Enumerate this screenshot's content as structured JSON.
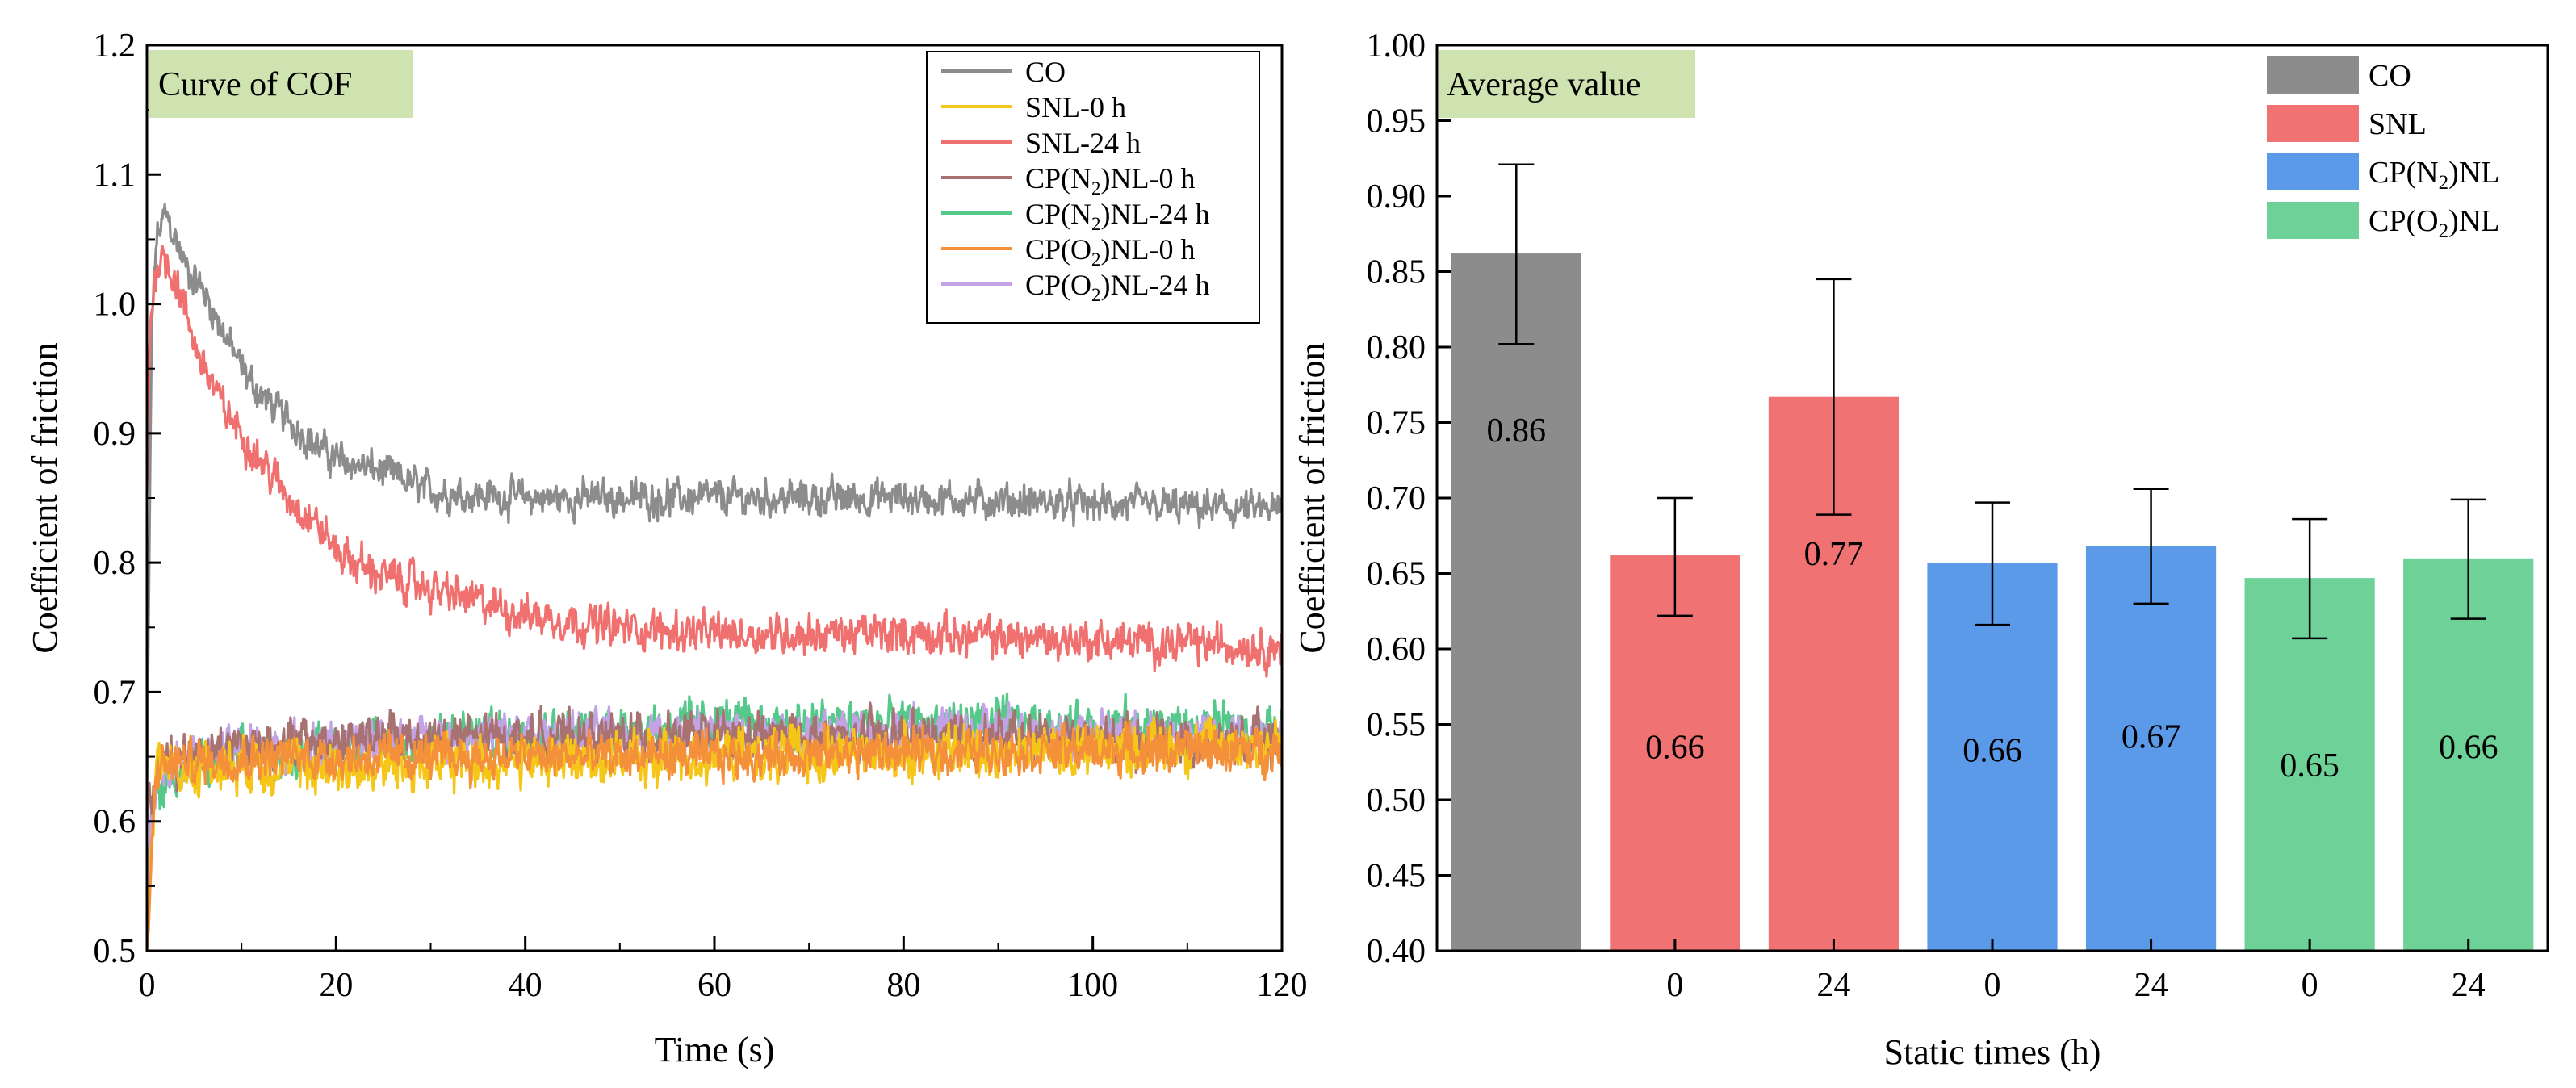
{
  "chart_data": [
    {
      "type": "line",
      "title": "Curve of COF",
      "xlabel": "Time (s)",
      "ylabel": "Coefficient of friction",
      "xlim": [
        0,
        120
      ],
      "ylim": [
        0.5,
        1.2
      ],
      "x_ticks": [
        0,
        20,
        40,
        60,
        80,
        100,
        120
      ],
      "y_ticks": [
        0.5,
        0.6,
        0.7,
        0.8,
        0.9,
        1.0,
        1.1,
        1.2
      ],
      "x_tick_labels": [
        "0",
        "20",
        "40",
        "60",
        "80",
        "100",
        "120"
      ],
      "y_tick_labels": [
        "0.5",
        "0.6",
        "0.7",
        "0.8",
        "0.9",
        "1.0",
        "1.1",
        "1.2"
      ],
      "legend_position": "top-right",
      "series": [
        {
          "name": "CO",
          "legend_base": "CO",
          "legend_sub": "",
          "legend_suffix": "",
          "color": "#8c8c8c",
          "x": [
            0,
            0.5,
            1,
            2,
            4,
            6,
            8,
            10,
            12,
            15,
            18,
            20,
            25,
            30,
            40,
            50,
            60,
            80,
            100,
            120
          ],
          "y": [
            0.62,
            0.98,
            1.05,
            1.07,
            1.03,
            1.01,
            0.98,
            0.95,
            0.93,
            0.91,
            0.89,
            0.88,
            0.87,
            0.855,
            0.85,
            0.85,
            0.85,
            0.85,
            0.845,
            0.84
          ],
          "noise": 0.018
        },
        {
          "name": "SNL-0 h",
          "legend_base": "SNL-0 h",
          "legend_sub": "",
          "legend_suffix": "",
          "color": "#f5c518",
          "x": [
            0,
            1,
            3,
            10,
            20,
            30,
            60,
            90,
            120
          ],
          "y": [
            0.5,
            0.65,
            0.64,
            0.645,
            0.64,
            0.645,
            0.65,
            0.655,
            0.66
          ],
          "noise": 0.026
        },
        {
          "name": "SNL-24 h",
          "legend_base": "SNL-24 h",
          "legend_sub": "",
          "legend_suffix": "",
          "color": "#f07070",
          "x": [
            0,
            0.3,
            0.8,
            1.5,
            3,
            5,
            8,
            12,
            15,
            18,
            20,
            22,
            25,
            30,
            40,
            50,
            60,
            80,
            100,
            120
          ],
          "y": [
            0.85,
            0.98,
            1.02,
            1.04,
            1.02,
            0.97,
            0.92,
            0.88,
            0.85,
            0.83,
            0.81,
            0.8,
            0.79,
            0.78,
            0.76,
            0.75,
            0.745,
            0.745,
            0.74,
            0.735
          ],
          "noise": 0.02
        },
        {
          "name": "CP(N2)NL-0 h",
          "legend_base": "CP(N",
          "legend_sub": "2",
          "legend_suffix": ")NL-0 h",
          "color": "#a97272",
          "x": [
            0,
            1,
            3,
            10,
            30,
            60,
            90,
            120
          ],
          "y": [
            0.6,
            0.64,
            0.65,
            0.66,
            0.665,
            0.665,
            0.665,
            0.66
          ],
          "noise": 0.024
        },
        {
          "name": "CP(N2)NL-24 h",
          "legend_base": "CP(N",
          "legend_sub": "2",
          "legend_suffix": ")NL-24 h",
          "color": "#55c98a",
          "x": [
            0,
            1,
            3,
            10,
            30,
            60,
            90,
            120
          ],
          "y": [
            0.56,
            0.62,
            0.64,
            0.65,
            0.665,
            0.675,
            0.675,
            0.67
          ],
          "noise": 0.024
        },
        {
          "name": "CP(O2)NL-0 h",
          "legend_base": "CP(O",
          "legend_sub": "2",
          "legend_suffix": ")NL-0 h",
          "color": "#f5903a",
          "x": [
            0,
            1,
            3,
            10,
            30,
            60,
            90,
            120
          ],
          "y": [
            0.5,
            0.64,
            0.645,
            0.65,
            0.65,
            0.65,
            0.655,
            0.655
          ],
          "noise": 0.022
        },
        {
          "name": "CP(O2)NL-24 h",
          "legend_base": "CP(O",
          "legend_sub": "2",
          "legend_suffix": ")NL-24 h",
          "color": "#c3a3e6",
          "x": [
            0,
            1,
            3,
            10,
            30,
            60,
            90,
            120
          ],
          "y": [
            0.55,
            0.64,
            0.65,
            0.655,
            0.665,
            0.67,
            0.67,
            0.665
          ],
          "noise": 0.022
        }
      ]
    },
    {
      "type": "bar",
      "title": "Average value",
      "xlabel": "Static times (h)",
      "ylabel": "Coefficient of friction",
      "ylim": [
        0.4,
        1.0
      ],
      "y_ticks": [
        0.4,
        0.45,
        0.5,
        0.55,
        0.6,
        0.65,
        0.7,
        0.75,
        0.8,
        0.85,
        0.9,
        0.95,
        1.0
      ],
      "y_tick_labels": [
        "0.40",
        "0.45",
        "0.50",
        "0.55",
        "0.60",
        "0.65",
        "0.70",
        "0.75",
        "0.80",
        "0.85",
        "0.90",
        "0.95",
        "1.00"
      ],
      "categories": [
        "",
        "0",
        "24",
        "0",
        "24",
        "0",
        "24"
      ],
      "values": [
        0.862,
        0.662,
        0.767,
        0.657,
        0.668,
        0.647,
        0.66
      ],
      "error_low": [
        0.802,
        0.622,
        0.689,
        0.616,
        0.63,
        0.607,
        0.62
      ],
      "error_high": [
        0.921,
        0.7,
        0.845,
        0.697,
        0.706,
        0.686,
        0.699
      ],
      "value_labels": [
        "0.86",
        "0.66",
        "0.77",
        "0.66",
        "0.67",
        "0.65",
        "0.66"
      ],
      "bar_group": [
        0,
        1,
        1,
        2,
        2,
        3,
        3
      ],
      "groups": [
        {
          "name": "CO",
          "legend_base": "CO",
          "legend_sub": "",
          "legend_suffix": "",
          "color": "#8c8c8c"
        },
        {
          "name": "SNL",
          "legend_base": "SNL",
          "legend_sub": "",
          "legend_suffix": "",
          "color": "#f07272"
        },
        {
          "name": "CP(N2)NL",
          "legend_base": "CP(N",
          "legend_sub": "2",
          "legend_suffix": ")NL",
          "color": "#5b9ae8"
        },
        {
          "name": "CP(O2)NL",
          "legend_base": "CP(O",
          "legend_sub": "2",
          "legend_suffix": ")NL",
          "color": "#6dd198"
        }
      ],
      "legend_position": "top-right",
      "title_box_color": "#cfe3b0"
    }
  ]
}
